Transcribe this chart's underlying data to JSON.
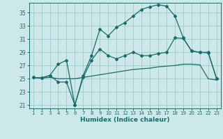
{
  "xlabel": "Humidex (Indice chaleur)",
  "bg_color": "#cce8e8",
  "grid_color": "#99cccc",
  "line_color": "#1a6b6b",
  "x_values": [
    1,
    2,
    3,
    4,
    5,
    6,
    7,
    8,
    9,
    10,
    11,
    12,
    13,
    14,
    15,
    16,
    17,
    18,
    19,
    20,
    21,
    22,
    23
  ],
  "series1": [
    25.2,
    25.1,
    25.2,
    25.0,
    25.0,
    25.0,
    25.2,
    25.4,
    25.6,
    25.8,
    26.0,
    26.2,
    26.4,
    26.5,
    26.6,
    26.8,
    26.9,
    27.0,
    27.2,
    27.2,
    27.1,
    25.0,
    24.8
  ],
  "series2": [
    25.2,
    25.1,
    25.5,
    24.5,
    24.5,
    21.0,
    25.2,
    27.8,
    29.5,
    28.5,
    28.0,
    28.5,
    29.0,
    28.5,
    28.5,
    28.8,
    29.0,
    31.2,
    31.1,
    29.2,
    29.0,
    28.9,
    25.0
  ],
  "series3": [
    25.2,
    25.1,
    25.5,
    27.2,
    27.8,
    21.0,
    25.5,
    28.5,
    32.5,
    31.5,
    32.8,
    33.5,
    34.5,
    35.5,
    35.9,
    36.2,
    36.0,
    34.5,
    31.2,
    29.2,
    29.0,
    29.0,
    25.0
  ],
  "ylim": [
    20.5,
    36.5
  ],
  "yticks": [
    21,
    23,
    25,
    27,
    29,
    31,
    33,
    35
  ],
  "xlim": [
    0.5,
    23.5
  ],
  "xticks": [
    1,
    2,
    3,
    4,
    5,
    6,
    7,
    8,
    9,
    10,
    11,
    12,
    13,
    14,
    15,
    16,
    17,
    18,
    19,
    20,
    21,
    22,
    23
  ],
  "figwidth": 3.2,
  "figheight": 2.0,
  "dpi": 100
}
